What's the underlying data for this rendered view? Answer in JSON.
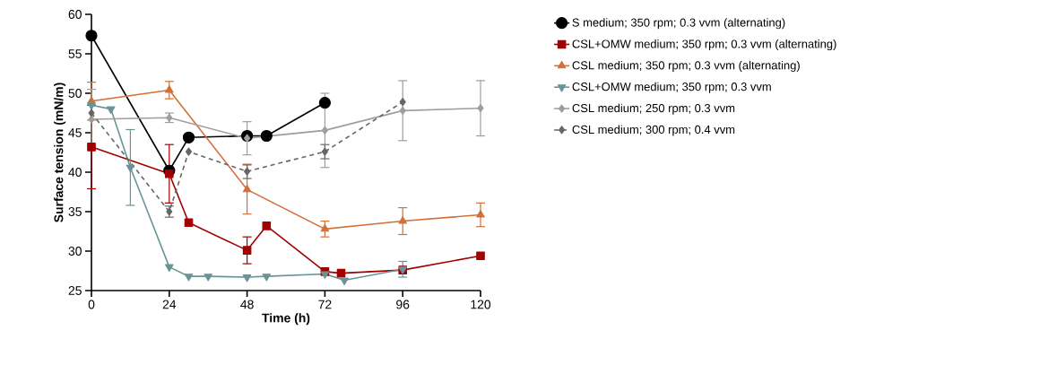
{
  "chart_data": {
    "type": "line",
    "xlabel": "Time (h)",
    "ylabel": "Surface tension (mN/m)",
    "xlim": [
      0,
      120
    ],
    "xticks": [
      0,
      24,
      48,
      72,
      96,
      120
    ],
    "ylim": [
      25,
      60
    ],
    "yticks": [
      25,
      30,
      35,
      40,
      45,
      50,
      55,
      60
    ],
    "legend": "right",
    "grid": false,
    "series": [
      {
        "name": "S medium; 350 rpm; 0.3 vvm (alternating)",
        "color": "#000000",
        "marker": "circle",
        "line_style": "solid",
        "x": [
          0,
          24,
          30,
          48,
          54,
          72
        ],
        "values": [
          57.3,
          40.2,
          44.4,
          44.6,
          44.6,
          48.8
        ]
      },
      {
        "name": "CSL+OMW medium; 350 rpm; 0.3 vvm (alternating)",
        "color": "#a00000",
        "marker": "square",
        "line_style": "solid",
        "x": [
          0,
          24,
          30,
          48,
          54,
          72,
          77,
          96,
          120
        ],
        "values": [
          43.2,
          39.8,
          33.6,
          30.1,
          33.2,
          27.4,
          27.2,
          27.6,
          29.4
        ],
        "errors": [
          5.3,
          3.7,
          null,
          1.7,
          null,
          null,
          null,
          null,
          null
        ]
      },
      {
        "name": "CSL medium; 350 rpm; 0.3 vvm (alternating)",
        "color": "#d2703a",
        "marker": "triangle",
        "line_style": "solid",
        "x": [
          0,
          24,
          48,
          72,
          96,
          120
        ],
        "values": [
          49.0,
          50.4,
          37.8,
          32.8,
          33.8,
          34.6
        ],
        "errors": [
          2.4,
          1.1,
          3.1,
          1.0,
          1.7,
          1.5
        ]
      },
      {
        "name": "CSL+OMW medium; 350 rpm; 0.3 vvm",
        "color": "#6a9398",
        "marker": "triangle-down",
        "line_style": "solid",
        "x": [
          0,
          6,
          12,
          24,
          30,
          36,
          48,
          54,
          72,
          78,
          96
        ],
        "values": [
          48.5,
          48.0,
          40.6,
          28.0,
          26.8,
          26.8,
          26.7,
          26.8,
          27.1,
          26.3,
          27.7
        ],
        "errors": [
          null,
          null,
          4.8,
          null,
          null,
          null,
          null,
          null,
          null,
          null,
          1.0
        ]
      },
      {
        "name": "CSL medium; 250 rpm; 0.3 vvm",
        "color": "#9e9e9e",
        "marker": "diamond",
        "line_style": "solid",
        "x": [
          0,
          24,
          48,
          72,
          96,
          120
        ],
        "values": [
          46.7,
          46.9,
          44.3,
          45.3,
          47.8,
          48.1
        ],
        "errors": [
          3.8,
          0.6,
          2.1,
          4.7,
          3.8,
          3.5
        ]
      },
      {
        "name": "CSL medium; 300 rpm; 0.4 vvm",
        "color": "#666666",
        "marker": "diamond",
        "line_style": "dashed",
        "x": [
          0,
          24,
          30,
          48,
          72,
          96
        ],
        "values": [
          47.5,
          35.0,
          42.6,
          40.1,
          42.6,
          48.9
        ],
        "errors": [
          null,
          0.7,
          null,
          0.9,
          0.9,
          null
        ]
      }
    ]
  }
}
